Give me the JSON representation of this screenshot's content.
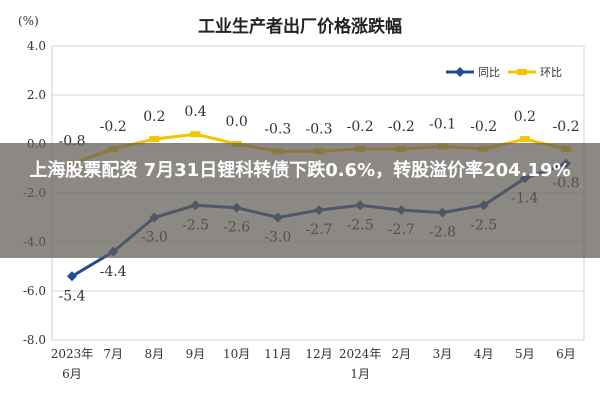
{
  "chart_data": {
    "type": "line",
    "title": "工业生产者出厂价格涨跌幅",
    "unit_label": "(%)",
    "categories": [
      "2023年\n6月",
      "7月",
      "8月",
      "9月",
      "10月",
      "11月",
      "12月",
      "2024年\n1月",
      "2月",
      "3月",
      "4月",
      "5月",
      "6月"
    ],
    "y_ticks": [
      "4.0",
      "2.0",
      "0.0",
      "-2.0",
      "-4.0",
      "-6.0",
      "-8.0"
    ],
    "ylim": [
      -8,
      4
    ],
    "grid": true,
    "legend_position": "top-right",
    "series": [
      {
        "name": "同比",
        "color": "#1f4e96",
        "values": [
          -5.4,
          -4.4,
          -3.0,
          -2.5,
          -2.6,
          -3.0,
          -2.7,
          -2.5,
          -2.7,
          -2.8,
          -2.5,
          -1.4,
          -0.8
        ],
        "labels": [
          "-5.4",
          "-4.4",
          "-3.0",
          "-2.5",
          "-2.6",
          "-3.0",
          "-2.7",
          "-2.5",
          "-2.7",
          "-2.8",
          "-2.5",
          "-1.4",
          "-0.8"
        ]
      },
      {
        "name": "环比",
        "color": "#f5c400",
        "values": [
          -0.8,
          -0.2,
          0.2,
          0.4,
          0.0,
          -0.3,
          -0.3,
          -0.2,
          -0.2,
          -0.1,
          -0.2,
          0.2,
          -0.2
        ],
        "labels": [
          "-0.8",
          "-0.2",
          "0.2",
          "0.4",
          "0.0",
          "-0.3",
          "-0.3",
          "-0.2",
          "-0.2",
          "-0.1",
          "-0.2",
          "0.2",
          "-0.2"
        ]
      }
    ]
  },
  "overlay": {
    "headline": "上海股票配资 7月31日锂科转债下跌0.6%，转股溢价率204.19%"
  }
}
